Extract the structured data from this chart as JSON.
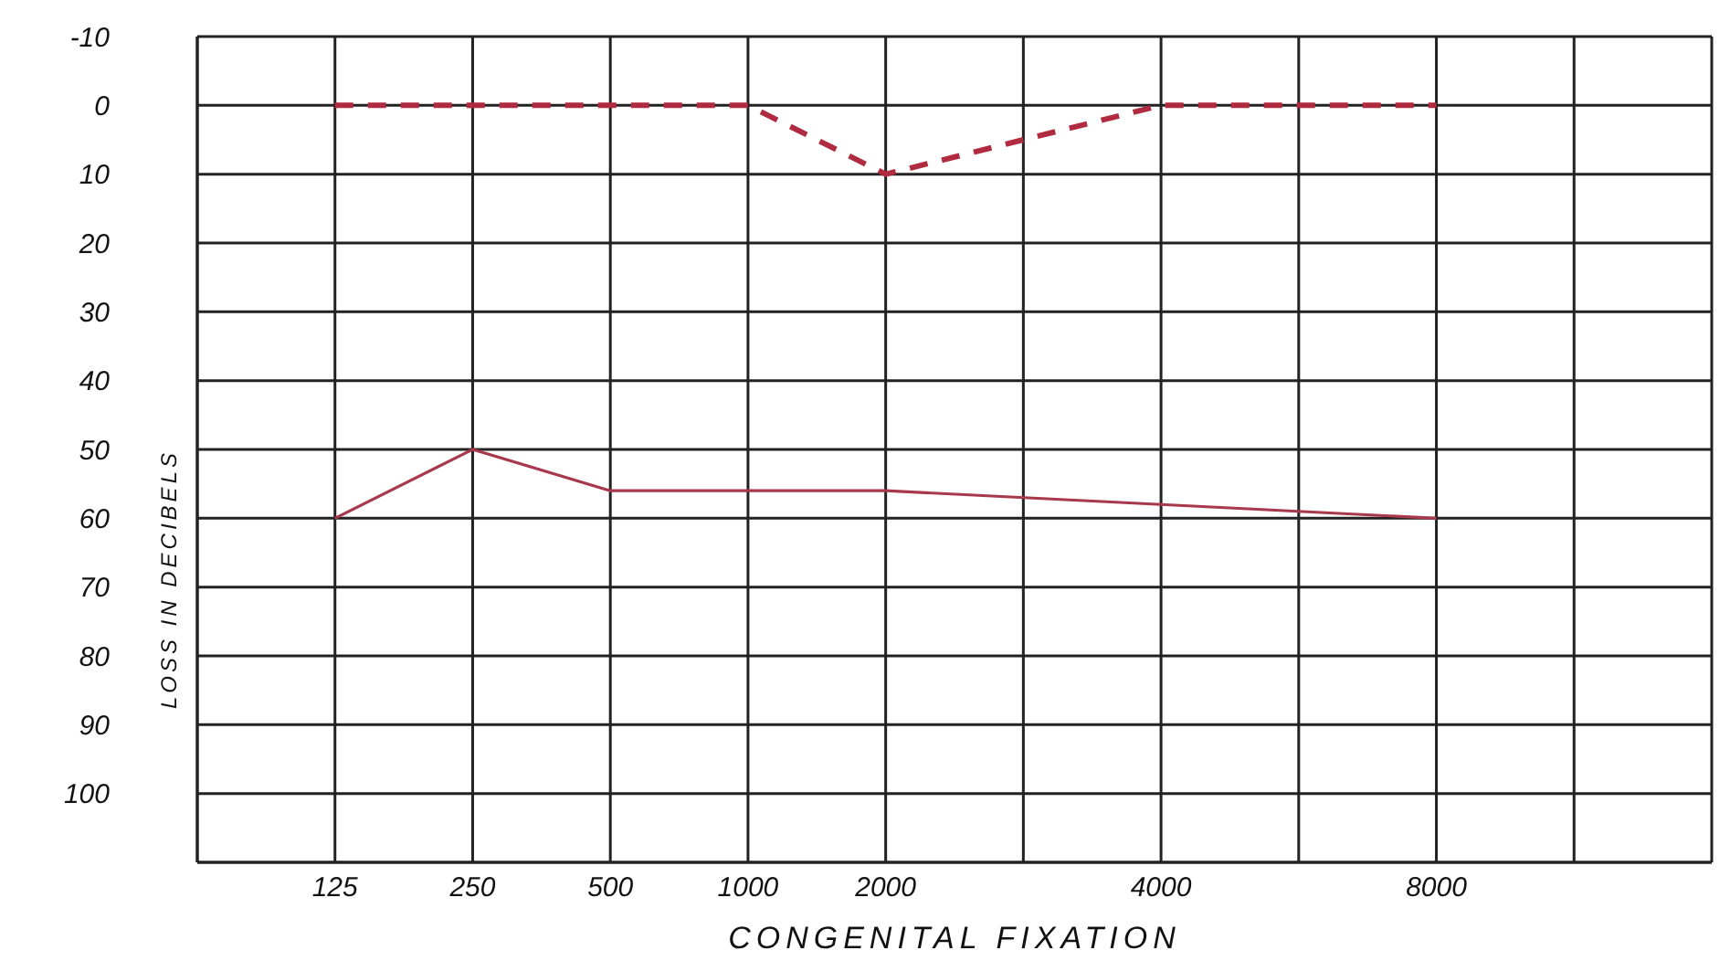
{
  "chart_data": {
    "type": "line",
    "xlabel": "CONGENITAL FIXATION",
    "ylabel": "LOSS IN DECIBELS",
    "categories": [
      "125",
      "250",
      "500",
      "1000",
      "2000",
      null,
      "4000",
      null,
      "8000",
      null
    ],
    "series": [
      {
        "color": "#b02a40",
        "line_style": "dashed",
        "values": [
          0,
          0,
          0,
          0,
          10,
          null,
          0,
          null,
          0,
          null
        ]
      },
      {
        "color": "#a8384c",
        "line_style": "solid",
        "values": [
          60,
          50,
          56,
          56,
          56,
          null,
          58,
          null,
          60,
          null
        ]
      }
    ],
    "ylim": [
      110,
      -10
    ],
    "yticks": [
      -10,
      0,
      10,
      20,
      30,
      40,
      50,
      60,
      70,
      80,
      90,
      100,
      {
        "value": 110,
        "label": null
      }
    ],
    "grid": true,
    "marker": "none",
    "legend": false
  }
}
